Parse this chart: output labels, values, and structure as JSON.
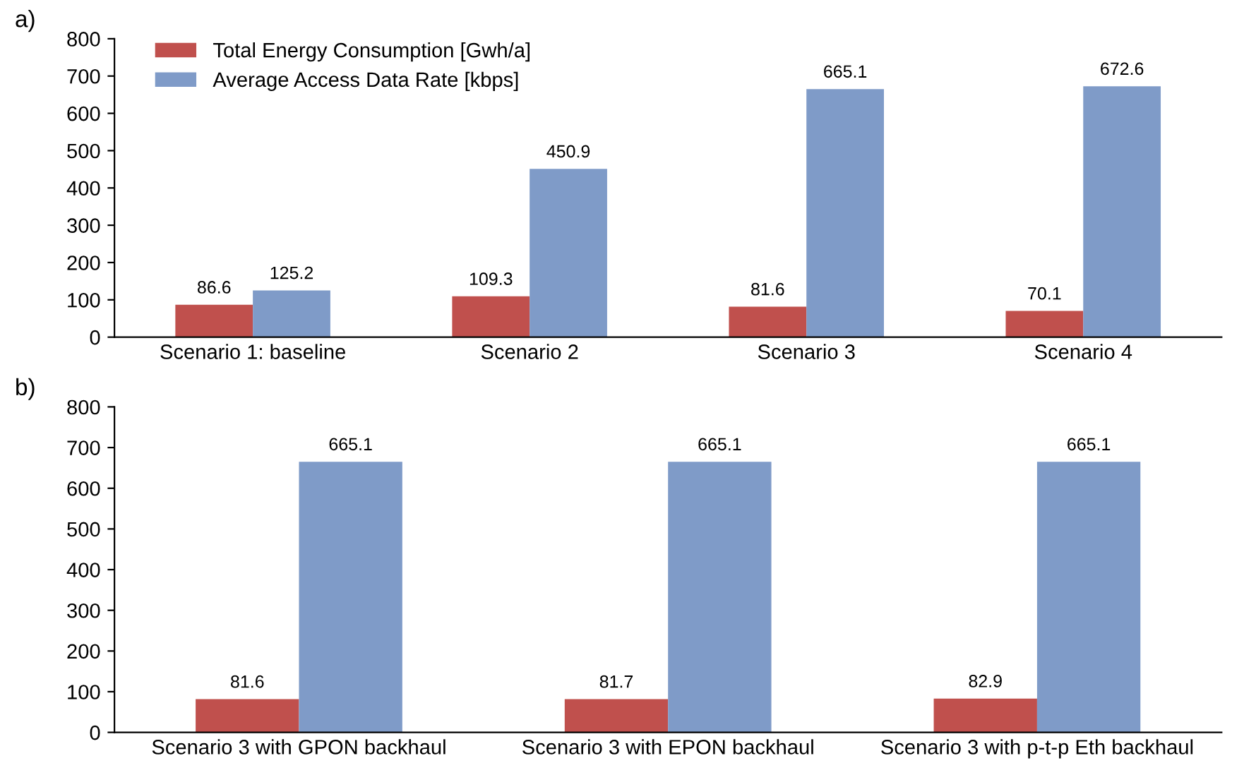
{
  "chart_data": [
    {
      "type": "bar",
      "title": "a)",
      "categories": [
        "Scenario 1: baseline",
        "Scenario 2",
        "Scenario 3",
        "Scenario 4"
      ],
      "series": [
        {
          "name": "Total Energy Consumption [Gwh/a]",
          "color": "#c0504d",
          "values": [
            86.6,
            109.3,
            81.6,
            70.1
          ]
        },
        {
          "name": "Average Access Data Rate [kbps]",
          "color": "#7f9bc8",
          "values": [
            125.2,
            450.9,
            665.1,
            672.6
          ]
        }
      ],
      "ylim": [
        0,
        800
      ],
      "yticks": [
        0,
        100,
        200,
        300,
        400,
        500,
        600,
        700,
        800
      ],
      "data_labels": true,
      "legend": "top left",
      "grid": false
    },
    {
      "type": "bar",
      "title": "b)",
      "categories": [
        "Scenario 3 with GPON backhaul",
        "Scenario 3 with EPON backhaul",
        "Scenario 3 with p-t-p Eth backhaul"
      ],
      "series": [
        {
          "color": "#c0504d",
          "values": [
            81.6,
            81.7,
            82.9
          ]
        },
        {
          "color": "#7f9bc8",
          "values": [
            665.1,
            665.1,
            665.1
          ]
        }
      ],
      "ylim": [
        0,
        800
      ],
      "yticks": [
        0,
        100,
        200,
        300,
        400,
        500,
        600,
        700,
        800
      ],
      "data_labels": true,
      "legend": false,
      "grid": false
    }
  ]
}
